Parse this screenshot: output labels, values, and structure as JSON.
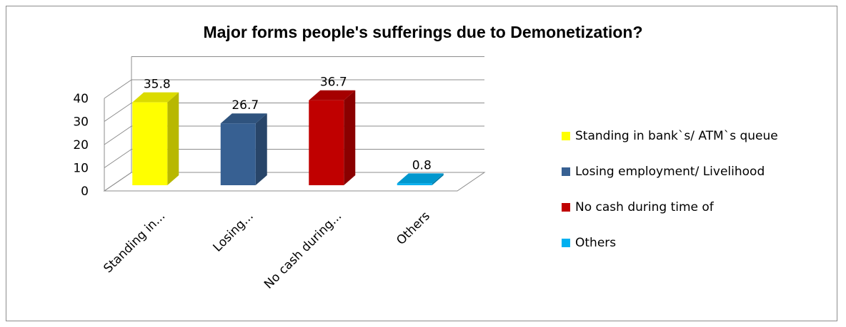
{
  "chart_data": {
    "type": "bar",
    "title": "Major forms people's sufferings due to Demonetization?",
    "categories": [
      "Standing in...",
      "Losing...",
      "No cash during...",
      "Others"
    ],
    "values": [
      35.8,
      26.7,
      36.7,
      0.8
    ],
    "data_labels": [
      "35.8",
      "26.7",
      "36.7",
      "0.8"
    ],
    "yticks": [
      "0",
      "10",
      "20",
      "30",
      "40"
    ],
    "ylim": [
      0,
      40
    ],
    "grid": true,
    "three_d": true,
    "legend_position": "right",
    "colors": [
      "#ffff00",
      "#376092",
      "#c00000",
      "#00b0f0"
    ],
    "legend": [
      "Standing in bank`s/ ATM`s queue",
      "Losing employment/ Livelihood",
      "No cash during time of",
      "Others"
    ]
  }
}
